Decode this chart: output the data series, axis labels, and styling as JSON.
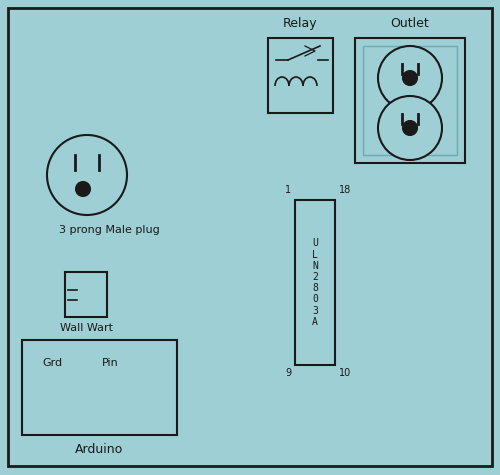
{
  "bg_color": "#9ecfd4",
  "border_color": "#1a1a1a",
  "wire_green": "#006600",
  "wire_red": "#cc3300",
  "wire_blue": "#2222cc",
  "wire_black": "#111111",
  "figsize": [
    5.0,
    4.75
  ],
  "dpi": 100,
  "labels": {
    "relay": "Relay",
    "outlet": "Outlet",
    "plug": "3 prong Male plug",
    "wall_wart": "Wall Wart",
    "arduino": "Arduino",
    "grd": "Grd",
    "pin": "Pin",
    "pin1": "1",
    "pin9": "9",
    "pin18": "18",
    "pin10": "10"
  }
}
